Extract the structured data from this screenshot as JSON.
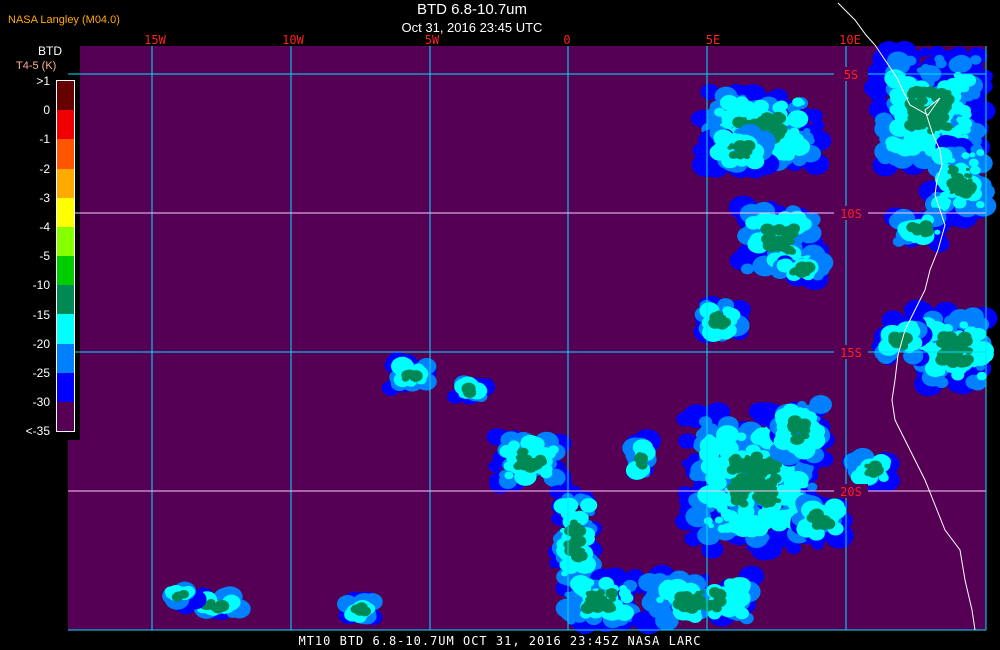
{
  "header": {
    "agency": "NASA Langley (M04.0)",
    "title": "BTD 6.8-10.7um",
    "subtitle": "Oct 31, 2016 23:45 UTC"
  },
  "colorbar": {
    "title": "BTD",
    "unit": "T4-5 (K)",
    "labels": [
      ">1",
      "0",
      "-1",
      "-2",
      "-3",
      "-4",
      "-5",
      "-10",
      "-15",
      "-20",
      "-25",
      "-30",
      "<-35"
    ],
    "colors": [
      "#660000",
      "#ee0000",
      "#ff5500",
      "#ffaa00",
      "#ffff00",
      "#88ff00",
      "#00cc00",
      "#008855",
      "#00ffff",
      "#0080ff",
      "#0000ff",
      "#550055"
    ]
  },
  "map": {
    "background_color": "#550055",
    "grid_color": "#00e0ff",
    "coastline_color": "#ffffff",
    "lon_labels": [
      "15W",
      "10W",
      "5W",
      "0",
      "5E",
      "10E"
    ],
    "lat_labels": [
      "5S",
      "10S",
      "15S",
      "20S"
    ]
  },
  "footer": "MT10  BTD 6.8-10.7UM   OCT 31, 2016 23:45Z   NASA LARC"
}
